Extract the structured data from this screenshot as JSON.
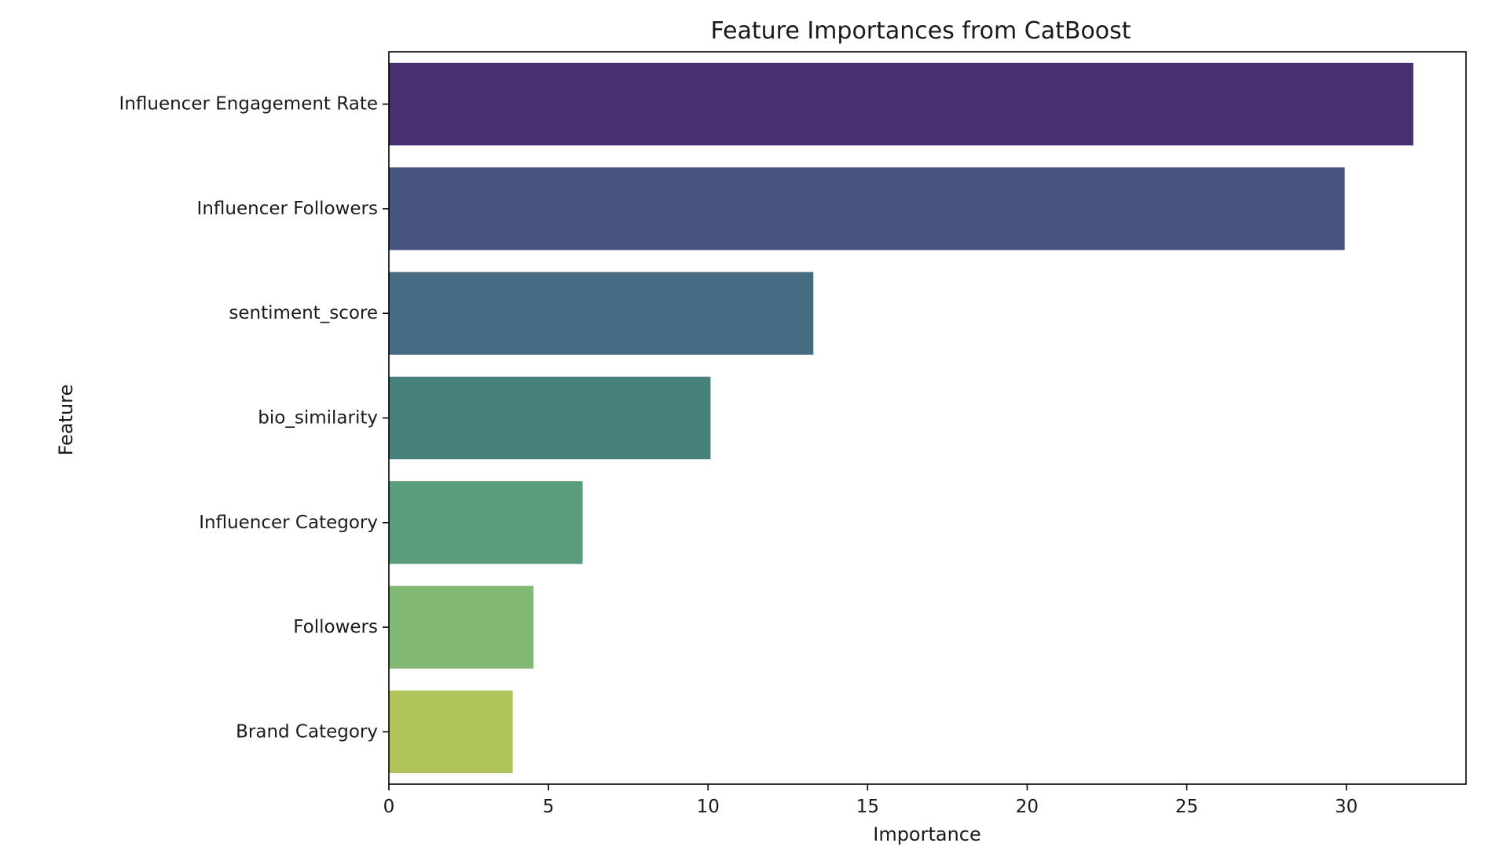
{
  "chart_data": {
    "type": "bar",
    "orientation": "horizontal",
    "title": "Feature Importances from CatBoost",
    "xlabel": "Importance",
    "ylabel": "Feature",
    "categories": [
      "Influencer Engagement Rate",
      "Influencer Followers",
      "sentiment_score",
      "bio_similarity",
      "Influencer Category",
      "Followers",
      "Brand Category"
    ],
    "values": [
      32.1,
      29.95,
      13.3,
      10.08,
      6.07,
      4.53,
      3.88
    ],
    "colors": [
      "#482f6e",
      "#47557e",
      "#456c80",
      "#47817b",
      "#599c7b",
      "#80b874",
      "#acc45a"
    ],
    "xlim": [
      0,
      33.75
    ],
    "xticks": [
      0,
      5,
      10,
      15,
      20,
      25,
      30
    ],
    "grid": false,
    "legend": false
  }
}
